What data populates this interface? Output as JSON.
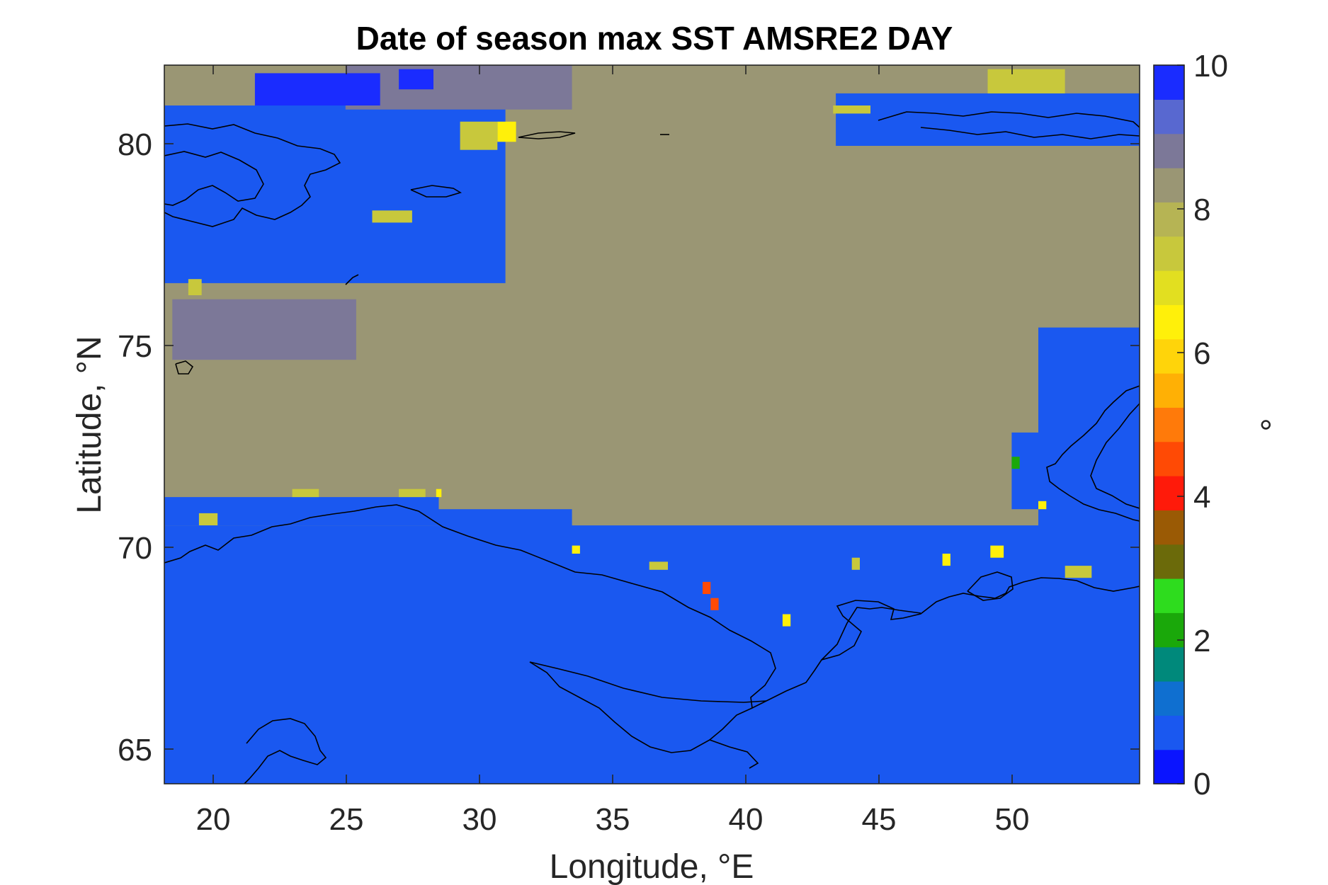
{
  "chart_data": {
    "type": "heatmap",
    "title": "Date of season max SST AMSRE2 DAY",
    "xlabel": "Longitude, °E",
    "ylabel": "Latitude, °N",
    "xlim": [
      18.2,
      54.8
    ],
    "ylim": [
      64.1,
      81.9
    ],
    "xticks": [
      "20",
      "25",
      "30",
      "35",
      "40",
      "45",
      "50"
    ],
    "yticks": [
      "65",
      "70",
      "75",
      "80"
    ],
    "colorbar": {
      "label": "°",
      "range": [
        0,
        10
      ],
      "ticks": [
        "0",
        "2",
        "4",
        "6",
        "8",
        "10"
      ],
      "colors": [
        "#0a14ff",
        "#1a58f0",
        "#0f6fd0",
        "#00897b",
        "#1aa80a",
        "#2edc1e",
        "#6b6a0a",
        "#9a5a05",
        "#ff1a0a",
        "#ff4a05",
        "#ff7a0a",
        "#ffb005",
        "#ffd40a",
        "#fff00a",
        "#e2df20",
        "#c8c83c",
        "#b6b454",
        "#9a9674",
        "#7c7898",
        "#5868d0",
        "#1a2cff"
      ]
    },
    "land_value": 0.8,
    "dominant_value": 8.1,
    "regions": [
      {
        "value": 8.1,
        "lon": [
          18.2,
          54.8
        ],
        "lat": [
          64.1,
          81.9
        ]
      },
      {
        "value": 0.8,
        "lon": [
          18.2,
          54.8
        ],
        "lat": [
          64.1,
          70.5
        ]
      },
      {
        "value": 0.8,
        "lon": [
          18.2,
          28.5
        ],
        "lat": [
          70.5,
          71.2
        ]
      },
      {
        "value": 0.8,
        "lon": [
          28.5,
          33.5
        ],
        "lat": [
          69.7,
          70.9
        ]
      },
      {
        "value": 0.8,
        "lon": [
          33.5,
          41.5
        ],
        "lat": [
          68.1,
          69.7
        ]
      },
      {
        "value": 0.8,
        "lon": [
          42.0,
          54.8
        ],
        "lat": [
          68.3,
          69.8
        ]
      },
      {
        "value": 0.8,
        "lon": [
          18.2,
          31.0
        ],
        "lat": [
          76.5,
          80.9
        ]
      },
      {
        "value": 0.8,
        "lon": [
          25.0,
          29.0
        ],
        "lat": [
          78.0,
          79.6
        ]
      },
      {
        "value": 0.8,
        "lon": [
          43.4,
          54.8
        ],
        "lat": [
          79.9,
          81.2
        ]
      },
      {
        "value": 0.8,
        "lon": [
          51.0,
          54.8
        ],
        "lat": [
          69.9,
          75.4
        ]
      },
      {
        "value": 0.8,
        "lon": [
          50.0,
          51.0
        ],
        "lat": [
          70.9,
          72.8
        ]
      },
      {
        "value": 8.9,
        "lon": [
          18.5,
          25.4
        ],
        "lat": [
          74.6,
          76.1
        ]
      },
      {
        "value": 8.9,
        "lon": [
          25.0,
          33.5
        ],
        "lat": [
          80.8,
          81.9
        ]
      },
      {
        "value": 9.8,
        "lon": [
          21.6,
          26.3
        ],
        "lat": [
          80.9,
          81.7
        ]
      },
      {
        "value": 9.8,
        "lon": [
          27.0,
          28.3
        ],
        "lat": [
          81.3,
          81.8
        ]
      },
      {
        "value": 7.3,
        "lon": [
          29.3,
          30.7
        ],
        "lat": [
          79.8,
          80.5
        ]
      },
      {
        "value": 6.3,
        "lon": [
          30.7,
          31.4
        ],
        "lat": [
          80.0,
          80.5
        ]
      },
      {
        "value": 7.3,
        "lon": [
          49.1,
          52.0
        ],
        "lat": [
          81.2,
          81.8
        ]
      },
      {
        "value": 7.3,
        "lon": [
          43.3,
          44.7
        ],
        "lat": [
          80.7,
          80.9
        ]
      },
      {
        "value": 7.3,
        "lon": [
          19.1,
          19.6
        ],
        "lat": [
          76.2,
          76.6
        ]
      },
      {
        "value": 7.3,
        "lon": [
          26.0,
          27.5
        ],
        "lat": [
          78.0,
          78.3
        ]
      },
      {
        "value": 7.3,
        "lon": [
          19.5,
          20.2
        ],
        "lat": [
          70.5,
          70.8
        ]
      },
      {
        "value": 7.3,
        "lon": [
          23.0,
          24.0
        ],
        "lat": [
          71.2,
          71.4
        ]
      },
      {
        "value": 7.3,
        "lon": [
          27.0,
          28.0
        ],
        "lat": [
          71.2,
          71.4
        ]
      },
      {
        "value": 6.3,
        "lon": [
          28.4,
          28.6
        ],
        "lat": [
          71.2,
          71.4
        ]
      },
      {
        "value": 6.3,
        "lon": [
          33.5,
          33.8
        ],
        "lat": [
          69.8,
          70.0
        ]
      },
      {
        "value": 7.3,
        "lon": [
          36.4,
          37.1
        ],
        "lat": [
          69.4,
          69.6
        ]
      },
      {
        "value": 4.3,
        "lon": [
          38.4,
          38.7
        ],
        "lat": [
          68.8,
          69.1
        ]
      },
      {
        "value": 4.3,
        "lon": [
          38.7,
          39.0
        ],
        "lat": [
          68.4,
          68.7
        ]
      },
      {
        "value": 6.3,
        "lon": [
          41.4,
          41.7
        ],
        "lat": [
          68.0,
          68.3
        ]
      },
      {
        "value": 7.3,
        "lon": [
          44.0,
          44.3
        ],
        "lat": [
          69.4,
          69.7
        ]
      },
      {
        "value": 6.3,
        "lon": [
          47.4,
          47.7
        ],
        "lat": [
          69.5,
          69.8
        ]
      },
      {
        "value": 6.3,
        "lon": [
          49.2,
          49.7
        ],
        "lat": [
          69.7,
          70.0
        ]
      },
      {
        "value": 7.3,
        "lon": [
          52.0,
          53.0
        ],
        "lat": [
          69.2,
          69.5
        ]
      },
      {
        "value": 6.3,
        "lon": [
          51.0,
          51.3
        ],
        "lat": [
          70.9,
          71.1
        ]
      },
      {
        "value": 2.3,
        "lon": [
          50.0,
          50.3
        ],
        "lat": [
          71.9,
          72.2
        ]
      }
    ]
  }
}
